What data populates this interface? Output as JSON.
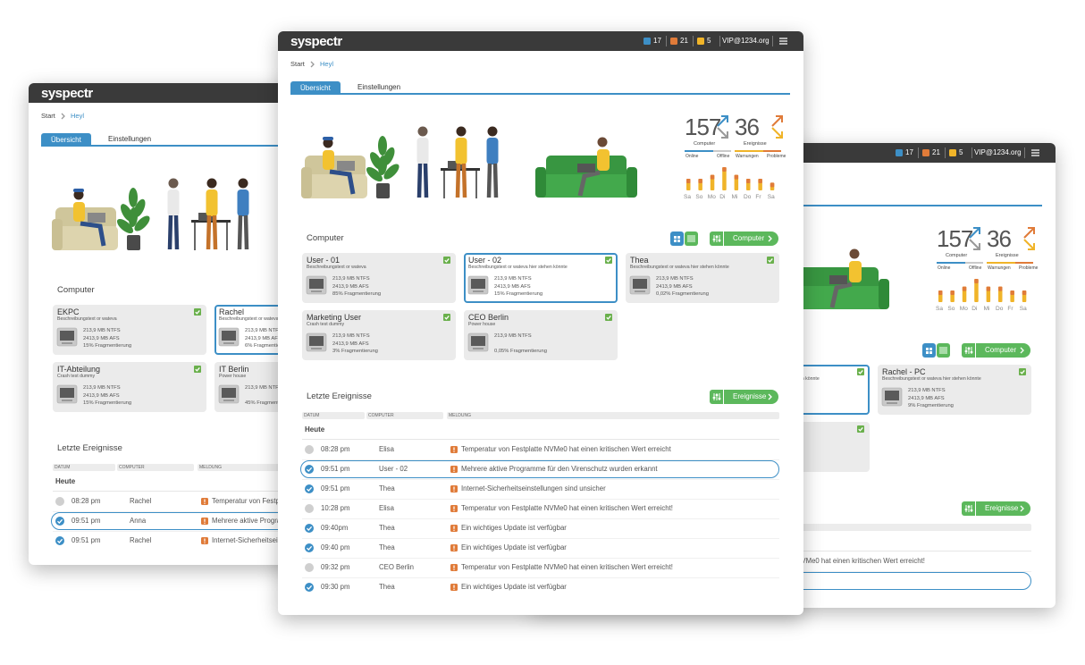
{
  "windows": [
    {
      "logo": "syspectr",
      "breadcrumb": [
        "Start",
        "Heyl"
      ],
      "tabs": [
        "Übersicht",
        "Einstellungen"
      ],
      "computers": {
        "title": "Computer",
        "rows": [
          [
            {
              "name": "EKPC",
              "desc": "Beschreibungstext or wateva",
              "lines": [
                "213,9 MB NTFS",
                "2413,9 MB AFS",
                "15% Fragmentierung"
              ]
            },
            {
              "name": "Rachel",
              "desc": "Beschreibungstext or wateva hier stehen könnte",
              "lines": [
                "213,9 MB NTFS",
                "2413,9 MB AFS",
                "6% Fragmentierung"
              ],
              "selected": true
            }
          ],
          [
            {
              "name": "IT-Abteilung",
              "desc": "Crash test dummy",
              "lines": [
                "213,9 MB NTFS",
                "2413,9 MB AFS",
                "15% Fragmentierung"
              ]
            },
            {
              "name": "IT Berlin",
              "desc": "Power house",
              "lines": [
                "213,9 MB NTFS",
                null,
                "45% Fragmentierung"
              ]
            }
          ]
        ]
      },
      "events": {
        "title": "Letzte Ereignisse",
        "columns": [
          "DATUM",
          "COMPUTER",
          "MELDUNG"
        ],
        "group": "Heute",
        "rows": [
          {
            "time": "08:28 pm",
            "computer": "Rachel",
            "message": "Temperatur von Festplatte NVMe0 hat einen kritischen Wert erreicht",
            "status": "offline"
          },
          {
            "time": "09:51 pm",
            "computer": "Anna",
            "message": "Mehrere aktive Programme für den Virenschutz wurden erkannt",
            "status": "ok",
            "selected": true
          },
          {
            "time": "09:51 pm",
            "computer": "Rachel",
            "message": "Internet-Sicherheitseinstellungen sind unsicher",
            "status": "ok"
          }
        ]
      }
    },
    {
      "header": {
        "badges": [
          {
            "count": 17,
            "color": "#3d8fc6"
          },
          {
            "count": 21,
            "color": "#e07b39"
          },
          {
            "count": 5,
            "color": "#f0b429"
          }
        ],
        "user": "VIP@1234.org"
      },
      "stats": {
        "computers": {
          "total": 157,
          "label": "Computer",
          "legend": [
            "Online",
            "Offline"
          ]
        },
        "events": {
          "total": 36,
          "label": "Ereignisse",
          "legend": [
            "Warnungen",
            "Probleme"
          ]
        }
      },
      "activity": {
        "days": [
          "Sa",
          "So",
          "Mo",
          "Di",
          "Mi",
          "Do",
          "Fr",
          "Sa"
        ],
        "values": [
          3,
          3,
          4,
          6,
          4,
          4,
          3,
          3
        ]
      },
      "computers": {
        "button": "Computer",
        "rows": [
          [
            null,
            {
              "desc": "Beschreibungstext or wateva hier stehen könnte",
              "selected": true
            },
            {
              "name": "Rachel - PC",
              "desc": "Beschreibungstext or wateva hier stehen könnte",
              "lines": [
                "213,9 MB NTFS",
                "2413,9 MB AFS",
                "9% Fragmentierung"
              ]
            }
          ],
          [
            null,
            {}
          ]
        ]
      },
      "events": {
        "button": "Ereignisse",
        "rows": [
          {
            "message": "Temperatur von Festplatte NVMe0 hat einen kritischen Wert erreicht!"
          },
          {
            "selected": true
          }
        ]
      }
    },
    {
      "logo": "syspectr",
      "header": {
        "badges": [
          {
            "count": 17,
            "color": "#3d8fc6"
          },
          {
            "count": 21,
            "color": "#e07b39"
          },
          {
            "count": 5,
            "color": "#f0b429"
          }
        ],
        "user": "VIP@1234.org"
      },
      "breadcrumb": [
        "Start",
        "Heyl"
      ],
      "tabs": [
        "Übersicht",
        "Einstellungen"
      ],
      "stats": {
        "computers": {
          "total": 157,
          "label": "Computer",
          "legend": [
            "Online",
            "Offline"
          ]
        },
        "events": {
          "total": 36,
          "label": "Ereignisse",
          "legend": [
            "Warnungen",
            "Probleme"
          ]
        }
      },
      "activity": {
        "days": [
          "Sa",
          "So",
          "Mo",
          "Di",
          "Mi",
          "Do",
          "Fr",
          "Sa"
        ],
        "values": [
          3,
          3,
          4,
          6,
          4,
          3,
          3,
          2
        ]
      },
      "computers": {
        "title": "Computer",
        "button": "Computer",
        "rows": [
          [
            {
              "name": "User - 01",
              "desc": "Beschreibungstext or wateva",
              "lines": [
                "213,9 MB NTFS",
                "2413,9 MB AFS",
                "85% Fragmentierung"
              ]
            },
            {
              "name": "User - 02",
              "desc": "Beschreibungstext or wateva hier stehen könnte",
              "lines": [
                "213,9 MB NTFS",
                "2413,9 MB AFS",
                "15% Fragmentierung"
              ],
              "selected": true
            },
            {
              "name": "Thea",
              "desc": "Beschreibungstext or wateva hier stehen könnte",
              "lines": [
                "213,9 MB NTFS",
                "2413,9 MB AFS",
                "0,02% Fragmentierung"
              ]
            }
          ],
          [
            {
              "name": "Marketing User",
              "desc": "Crash test dummy",
              "lines": [
                "213,9 MB NTFS",
                "2413,9 MB AFS",
                "3% Fragmentierung"
              ]
            },
            {
              "name": "CEO Berlin",
              "desc": "Power house",
              "lines": [
                "213,9 MB NTFS",
                null,
                "0,05% Fragmentierung"
              ]
            }
          ]
        ]
      },
      "events": {
        "title": "Letzte Ereignisse",
        "button": "Ereignisse",
        "columns": [
          "DATUM",
          "COMPUTER",
          "MELDUNG"
        ],
        "group": "Heute",
        "rows": [
          {
            "time": "08:28 pm",
            "computer": "Elisa",
            "message": "Temperatur von Festplatte NVMe0 hat einen kritischen Wert erreicht",
            "status": "offline"
          },
          {
            "time": "09:51 pm",
            "computer": "User - 02",
            "message": "Mehrere aktive Programme für den Virenschutz wurden erkannt",
            "status": "ok",
            "selected": true
          },
          {
            "time": "09:51 pm",
            "computer": "Thea",
            "message": "Internet-Sicherheitseinstellungen sind unsicher",
            "status": "ok"
          },
          {
            "time": "10:28 pm",
            "computer": "Elisa",
            "message": "Temperatur von Festplatte NVMe0 hat einen kritischen Wert erreicht!",
            "status": "offline"
          },
          {
            "time": "09:40pm",
            "computer": "Thea",
            "message": "Ein wichtiges Update ist verfügbar",
            "status": "ok"
          },
          {
            "time": "09:40 pm",
            "computer": "Thea",
            "message": "Ein wichtiges Update ist verfügbar",
            "status": "ok"
          },
          {
            "time": "09:32 pm",
            "computer": "CEO Berlin",
            "message": "Temperatur von Festplatte NVMe0 hat einen kritischen Wert erreicht!",
            "status": "offline"
          },
          {
            "time": "09:30 pm",
            "computer": "Thea",
            "message": "Ein wichtiges Update ist verfügbar",
            "status": "ok"
          }
        ]
      }
    }
  ]
}
